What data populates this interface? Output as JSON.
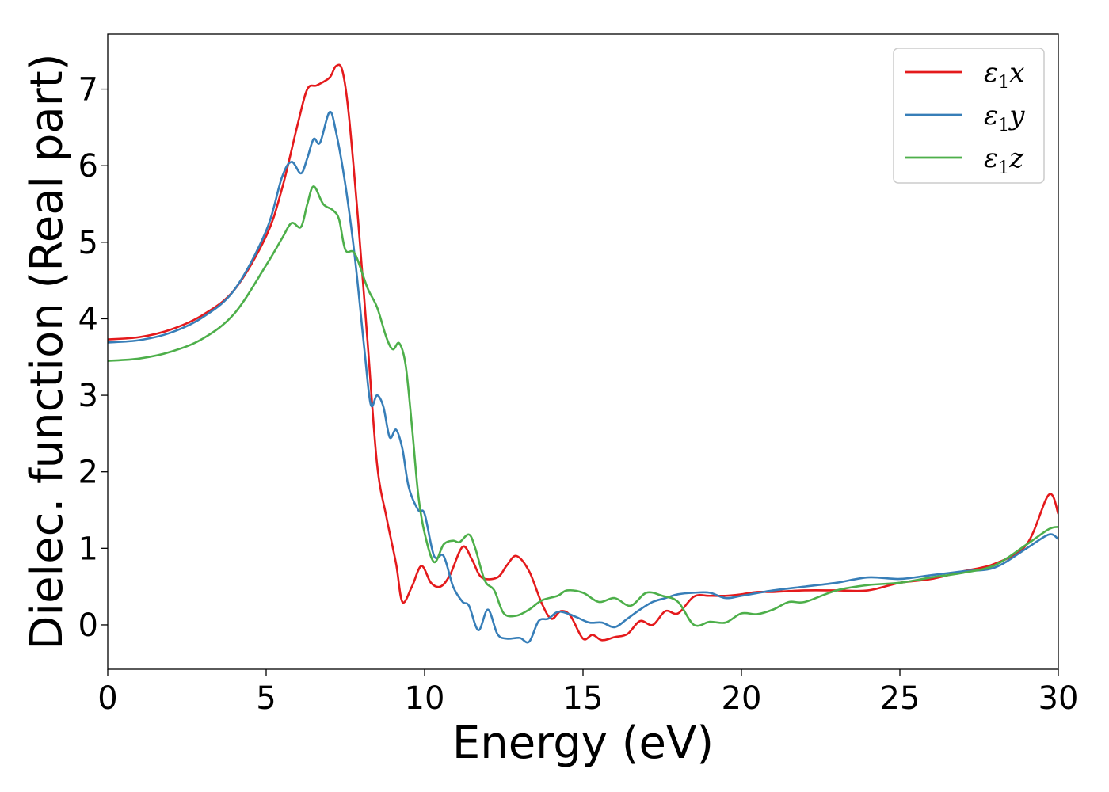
{
  "chart_data": {
    "type": "line",
    "title": "",
    "xlabel": "Energy (eV)",
    "ylabel": "Dielec. function (Real part)",
    "xlim": [
      0,
      30
    ],
    "ylim": [
      -0.58,
      7.72
    ],
    "xticks": [
      0,
      5,
      10,
      15,
      20,
      25,
      30
    ],
    "yticks": [
      0,
      1,
      2,
      3,
      4,
      5,
      6,
      7
    ],
    "grid": false,
    "legend_position": "top-right",
    "series": [
      {
        "symbol": "ε",
        "sub": "1",
        "axis": "x",
        "color": "#e41a1c",
        "points": [
          [
            0,
            3.73
          ],
          [
            1,
            3.76
          ],
          [
            2,
            3.86
          ],
          [
            3,
            4.05
          ],
          [
            4,
            4.38
          ],
          [
            5,
            5.08
          ],
          [
            5.5,
            5.7
          ],
          [
            6,
            6.55
          ],
          [
            6.3,
            7.0
          ],
          [
            6.6,
            7.05
          ],
          [
            7,
            7.15
          ],
          [
            7.2,
            7.3
          ],
          [
            7.4,
            7.25
          ],
          [
            7.6,
            6.7
          ],
          [
            7.9,
            5.3
          ],
          [
            8.2,
            3.7
          ],
          [
            8.5,
            2.1
          ],
          [
            8.8,
            1.4
          ],
          [
            9.1,
            0.8
          ],
          [
            9.3,
            0.3
          ],
          [
            9.6,
            0.5
          ],
          [
            9.9,
            0.77
          ],
          [
            10.2,
            0.55
          ],
          [
            10.5,
            0.5
          ],
          [
            10.8,
            0.65
          ],
          [
            11.2,
            1.02
          ],
          [
            11.5,
            0.85
          ],
          [
            11.8,
            0.62
          ],
          [
            12.3,
            0.62
          ],
          [
            12.6,
            0.78
          ],
          [
            12.9,
            0.9
          ],
          [
            13.3,
            0.7
          ],
          [
            13.7,
            0.28
          ],
          [
            14,
            0.08
          ],
          [
            14.3,
            0.18
          ],
          [
            14.6,
            0.12
          ],
          [
            15,
            -0.18
          ],
          [
            15.3,
            -0.13
          ],
          [
            15.6,
            -0.2
          ],
          [
            16,
            -0.16
          ],
          [
            16.4,
            -0.12
          ],
          [
            16.8,
            0.05
          ],
          [
            17.2,
            0.0
          ],
          [
            17.6,
            0.18
          ],
          [
            18,
            0.15
          ],
          [
            18.5,
            0.37
          ],
          [
            19,
            0.38
          ],
          [
            19.5,
            0.38
          ],
          [
            20,
            0.4
          ],
          [
            20.5,
            0.43
          ],
          [
            21,
            0.43
          ],
          [
            22,
            0.45
          ],
          [
            23,
            0.45
          ],
          [
            24,
            0.45
          ],
          [
            25,
            0.55
          ],
          [
            26,
            0.6
          ],
          [
            27,
            0.7
          ],
          [
            28,
            0.8
          ],
          [
            29,
            1.05
          ],
          [
            29.7,
            1.7
          ],
          [
            30,
            1.45
          ]
        ]
      },
      {
        "symbol": "ε",
        "sub": "1",
        "axis": "y",
        "color": "#377eb8",
        "points": [
          [
            0,
            3.69
          ],
          [
            1,
            3.72
          ],
          [
            2,
            3.82
          ],
          [
            3,
            4.02
          ],
          [
            4,
            4.38
          ],
          [
            5,
            5.15
          ],
          [
            5.5,
            5.85
          ],
          [
            5.8,
            6.05
          ],
          [
            6.1,
            5.9
          ],
          [
            6.3,
            6.1
          ],
          [
            6.5,
            6.35
          ],
          [
            6.7,
            6.3
          ],
          [
            7,
            6.7
          ],
          [
            7.2,
            6.45
          ],
          [
            7.5,
            5.75
          ],
          [
            7.8,
            4.8
          ],
          [
            8.1,
            3.6
          ],
          [
            8.3,
            2.88
          ],
          [
            8.5,
            3.0
          ],
          [
            8.7,
            2.85
          ],
          [
            8.9,
            2.45
          ],
          [
            9.1,
            2.55
          ],
          [
            9.3,
            2.3
          ],
          [
            9.5,
            1.8
          ],
          [
            9.8,
            1.5
          ],
          [
            10,
            1.45
          ],
          [
            10.3,
            0.9
          ],
          [
            10.6,
            0.9
          ],
          [
            10.9,
            0.5
          ],
          [
            11.2,
            0.3
          ],
          [
            11.4,
            0.25
          ],
          [
            11.7,
            -0.07
          ],
          [
            12,
            0.2
          ],
          [
            12.3,
            -0.12
          ],
          [
            12.6,
            -0.18
          ],
          [
            13,
            -0.17
          ],
          [
            13.3,
            -0.22
          ],
          [
            13.6,
            0.05
          ],
          [
            13.9,
            0.08
          ],
          [
            14.2,
            0.17
          ],
          [
            14.5,
            0.15
          ],
          [
            14.8,
            0.1
          ],
          [
            15.2,
            0.03
          ],
          [
            15.6,
            0.03
          ],
          [
            16,
            -0.03
          ],
          [
            16.4,
            0.08
          ],
          [
            16.8,
            0.2
          ],
          [
            17.2,
            0.3
          ],
          [
            17.6,
            0.35
          ],
          [
            18,
            0.4
          ],
          [
            18.5,
            0.42
          ],
          [
            19,
            0.42
          ],
          [
            19.5,
            0.35
          ],
          [
            20,
            0.38
          ],
          [
            21,
            0.45
          ],
          [
            22,
            0.5
          ],
          [
            23,
            0.55
          ],
          [
            24,
            0.62
          ],
          [
            25,
            0.6
          ],
          [
            26,
            0.65
          ],
          [
            27,
            0.7
          ],
          [
            28,
            0.75
          ],
          [
            29,
            1.0
          ],
          [
            29.7,
            1.18
          ],
          [
            30,
            1.12
          ]
        ]
      },
      {
        "symbol": "ε",
        "sub": "1",
        "axis": "z",
        "color": "#4daf4a",
        "points": [
          [
            0,
            3.45
          ],
          [
            1,
            3.48
          ],
          [
            2,
            3.57
          ],
          [
            3,
            3.74
          ],
          [
            4,
            4.07
          ],
          [
            5,
            4.7
          ],
          [
            5.5,
            5.05
          ],
          [
            5.8,
            5.25
          ],
          [
            6.1,
            5.2
          ],
          [
            6.3,
            5.5
          ],
          [
            6.5,
            5.73
          ],
          [
            6.8,
            5.5
          ],
          [
            7.1,
            5.42
          ],
          [
            7.3,
            5.3
          ],
          [
            7.5,
            4.9
          ],
          [
            7.8,
            4.85
          ],
          [
            8.2,
            4.4
          ],
          [
            8.5,
            4.15
          ],
          [
            8.8,
            3.75
          ],
          [
            9,
            3.6
          ],
          [
            9.2,
            3.68
          ],
          [
            9.4,
            3.4
          ],
          [
            9.6,
            2.6
          ],
          [
            9.8,
            1.7
          ],
          [
            10,
            1.2
          ],
          [
            10.3,
            0.82
          ],
          [
            10.6,
            1.05
          ],
          [
            10.9,
            1.1
          ],
          [
            11.1,
            1.08
          ],
          [
            11.4,
            1.18
          ],
          [
            11.6,
            1.0
          ],
          [
            11.9,
            0.58
          ],
          [
            12.2,
            0.45
          ],
          [
            12.5,
            0.15
          ],
          [
            12.9,
            0.12
          ],
          [
            13.3,
            0.2
          ],
          [
            13.7,
            0.32
          ],
          [
            14.2,
            0.38
          ],
          [
            14.5,
            0.45
          ],
          [
            15,
            0.42
          ],
          [
            15.5,
            0.3
          ],
          [
            16,
            0.35
          ],
          [
            16.5,
            0.25
          ],
          [
            17,
            0.42
          ],
          [
            17.5,
            0.38
          ],
          [
            18,
            0.3
          ],
          [
            18.5,
            0.0
          ],
          [
            19,
            0.04
          ],
          [
            19.5,
            0.03
          ],
          [
            20,
            0.15
          ],
          [
            20.5,
            0.14
          ],
          [
            21,
            0.2
          ],
          [
            21.5,
            0.3
          ],
          [
            22,
            0.3
          ],
          [
            23,
            0.45
          ],
          [
            24,
            0.52
          ],
          [
            25,
            0.55
          ],
          [
            26,
            0.62
          ],
          [
            27,
            0.68
          ],
          [
            28,
            0.78
          ],
          [
            29,
            1.05
          ],
          [
            29.7,
            1.25
          ],
          [
            30,
            1.28
          ]
        ]
      }
    ]
  }
}
